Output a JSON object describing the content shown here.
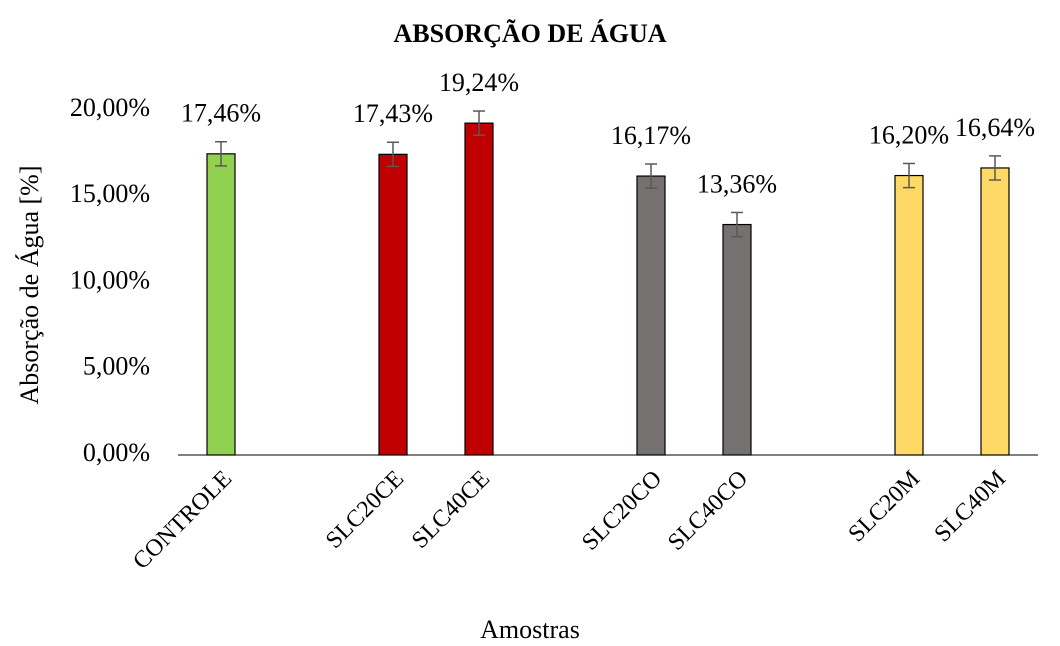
{
  "chart_data": {
    "type": "bar",
    "title": "ABSORÇÃO DE ÁGUA",
    "x_label": "Amostras",
    "y_label": "Absorção de Água [%]",
    "categories": [
      "CONTROLE",
      null,
      "SLC20CE",
      "SLC40CE",
      null,
      "SLC20CO",
      "SLC40CO",
      null,
      "SLC20M",
      "SLC40M"
    ],
    "values": [
      17.46,
      null,
      17.43,
      19.24,
      null,
      16.17,
      13.36,
      null,
      16.2,
      16.64
    ],
    "value_labels": [
      "17,46%",
      null,
      "17,43%",
      "19,24%",
      null,
      "16,17%",
      "13,36%",
      null,
      "16,20%",
      "16,64%"
    ],
    "errors": [
      0.7,
      null,
      0.7,
      0.7,
      null,
      0.7,
      0.7,
      null,
      0.7,
      0.7
    ],
    "colors": [
      "#92d050",
      null,
      "#c00000",
      "#c00000",
      null,
      "#767171",
      "#767171",
      null,
      "#ffd966",
      "#ffd966"
    ],
    "ylim": [
      0,
      20
    ],
    "yticks": [
      {
        "value": 0,
        "label": "0,00%"
      },
      {
        "value": 5,
        "label": "5,00%"
      },
      {
        "value": 10,
        "label": "10,00%"
      },
      {
        "value": 15,
        "label": "15,00%"
      },
      {
        "value": 20,
        "label": "20,00%"
      }
    ],
    "grid": false
  }
}
